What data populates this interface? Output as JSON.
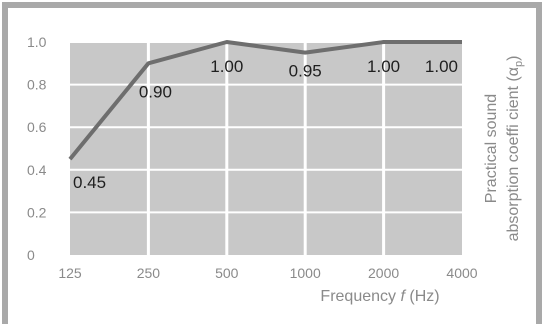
{
  "chart_data": {
    "type": "line",
    "categories": [
      "125",
      "250",
      "500",
      "1000",
      "2000",
      "4000"
    ],
    "series": [
      {
        "values": [
          0.45,
          0.9,
          1.0,
          0.95,
          1.0,
          1.0
        ]
      }
    ],
    "data_labels": [
      "0.45",
      "0.90",
      "1.00",
      "0.95",
      "1.00",
      "1.00"
    ],
    "y_tick_labels": [
      "0",
      "0.2",
      "0.4",
      "0.6",
      "0.8",
      "1.0"
    ],
    "ylim": [
      0,
      1.0
    ],
    "xlabel": "Frequency f (Hz)",
    "xlabel_parts": {
      "prefix": "Frequency ",
      "variable": "f",
      "suffix": " (Hz)"
    },
    "ylabel": "Practical sound absorption coeffi cient (αp)",
    "ylabel_lines": {
      "line1": "Practical sound",
      "line2_prefix": "absorption coeffi cient (α",
      "line2_sub": "p",
      "line2_suffix": ")"
    },
    "grid": true,
    "colors": {
      "plot_background": "#c8c8c8",
      "grid": "#ffffff",
      "line": "#6e6e6e",
      "frame": "#a9a9a9"
    }
  }
}
